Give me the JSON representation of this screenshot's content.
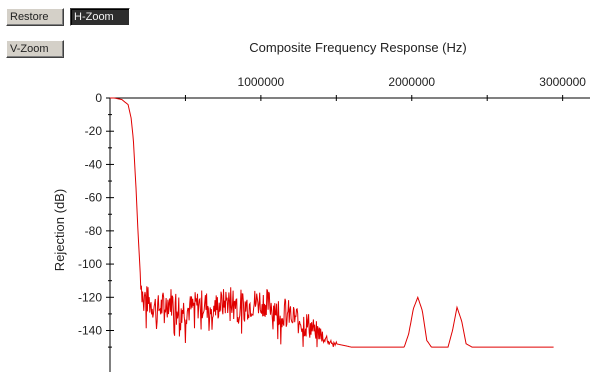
{
  "toolbar": {
    "restore_label": "Restore",
    "hzoom_label": "H-Zoom",
    "vzoom_label": "V-Zoom"
  },
  "chart_data": {
    "type": "line",
    "title": "Composite Frequency Response (Hz)",
    "xlabel": "",
    "ylabel": "Rejection (dB)",
    "xlim": [
      0,
      3000000
    ],
    "ylim": [
      -150,
      0
    ],
    "x_ticks": [
      1000000,
      2000000,
      3000000
    ],
    "x_tick_labels": [
      "1000000",
      "2000000",
      "3000000"
    ],
    "y_ticks": [
      0,
      -20,
      -40,
      -60,
      -80,
      -100,
      -120,
      -140
    ],
    "y_tick_labels": [
      "0",
      "-20",
      "-40",
      "-60",
      "-80",
      "-100",
      "-120",
      "-140"
    ],
    "x_axis_position": "top",
    "grid": false,
    "legend": "none",
    "line_color": "#e00000",
    "series": [
      {
        "x": [
          0,
          30000,
          80000,
          120000,
          140000,
          155000,
          170000,
          185000,
          200000,
          215000,
          260000,
          320000,
          400000,
          500000,
          600000,
          700000,
          800000,
          900000,
          1000000,
          1100000,
          1200000,
          1300000,
          1400000,
          1450000,
          1500000,
          1600000,
          1800000,
          1950000,
          1980000,
          2010000,
          2040000,
          2070000,
          2100000,
          2130000,
          2200000,
          2240000,
          2270000,
          2300000,
          2330000,
          2360000,
          2400000,
          2600000,
          2800000,
          2940000
        ],
        "y": [
          0,
          0,
          -1,
          -4,
          -12,
          -25,
          -50,
          -80,
          -105,
          -118,
          -123,
          -127,
          -122,
          -128,
          -124,
          -126,
          -121,
          -125,
          -122,
          -126,
          -131,
          -136,
          -142,
          -146,
          -148,
          -150,
          -150,
          -150,
          -142,
          -127,
          -120,
          -128,
          -146,
          -150,
          -150,
          -150,
          -140,
          -126,
          -134,
          -148,
          -150,
          -150,
          -150,
          -150
        ],
        "noise_band": {
          "x_range": [
            200000,
            1500000
          ],
          "amplitude_db": 18
        }
      }
    ]
  }
}
